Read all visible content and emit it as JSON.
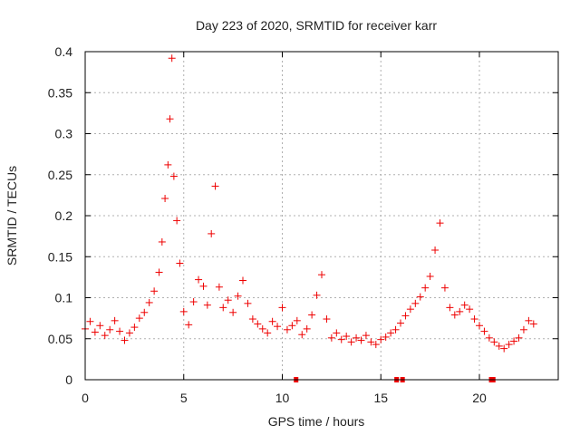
{
  "chart_data": {
    "type": "scatter",
    "title": "Day 223 of 2020, SRMTID for receiver karr",
    "xlabel": "GPS time / hours",
    "ylabel": "SRMTID / TECUs",
    "xlim": [
      0,
      24.0
    ],
    "ylim": [
      0,
      0.4
    ],
    "x_ticks": [
      0,
      5,
      10,
      15,
      20
    ],
    "x_tick_labels": [
      "0",
      "5",
      "10",
      "15",
      "20"
    ],
    "y_ticks": [
      0,
      0.05,
      0.1,
      0.15,
      0.2,
      0.25,
      0.3,
      0.35,
      0.4
    ],
    "y_tick_labels": [
      "0",
      "0.05",
      "0.1",
      "0.15",
      "0.2",
      "0.25",
      "0.3",
      "0.35",
      "0.4"
    ],
    "grid": true,
    "marker": "+",
    "color": "#ee0000",
    "series": [
      {
        "name": "SRMTID",
        "x": [
          0.0,
          0.25,
          0.5,
          0.75,
          1.0,
          1.25,
          1.5,
          1.75,
          2.0,
          2.25,
          2.5,
          2.75,
          3.0,
          3.25,
          3.5,
          3.75,
          3.9,
          4.05,
          4.2,
          4.3,
          4.4,
          4.5,
          4.65,
          4.8,
          5.0,
          5.25,
          5.5,
          5.75,
          6.0,
          6.2,
          6.4,
          6.6,
          6.8,
          7.0,
          7.25,
          7.5,
          7.75,
          8.0,
          8.25,
          8.5,
          8.75,
          9.0,
          9.25,
          9.5,
          9.75,
          10.0,
          10.25,
          10.5,
          10.75,
          11.0,
          11.25,
          11.5,
          11.75,
          12.0,
          12.25,
          12.5,
          12.75,
          13.0,
          13.25,
          13.5,
          13.75,
          14.0,
          14.25,
          14.5,
          14.75,
          15.0,
          15.25,
          15.5,
          15.75,
          16.0,
          16.25,
          16.5,
          16.75,
          17.0,
          17.25,
          17.5,
          17.75,
          18.0,
          18.25,
          18.5,
          18.75,
          19.0,
          19.25,
          19.5,
          19.75,
          20.0,
          20.25,
          20.5,
          20.75,
          21.0,
          21.25,
          21.5,
          21.75,
          22.0,
          22.25,
          22.5,
          22.75
        ],
        "y": [
          0.062,
          0.071,
          0.058,
          0.066,
          0.054,
          0.061,
          0.072,
          0.059,
          0.048,
          0.057,
          0.064,
          0.075,
          0.082,
          0.094,
          0.108,
          0.131,
          0.168,
          0.221,
          0.262,
          0.318,
          0.392,
          0.248,
          0.194,
          0.142,
          0.083,
          0.067,
          0.095,
          0.122,
          0.114,
          0.091,
          0.178,
          0.236,
          0.113,
          0.088,
          0.097,
          0.082,
          0.102,
          0.121,
          0.093,
          0.074,
          0.068,
          0.062,
          0.057,
          0.071,
          0.065,
          0.088,
          0.061,
          0.066,
          0.072,
          0.055,
          0.062,
          0.079,
          0.103,
          0.128,
          0.074,
          0.051,
          0.057,
          0.049,
          0.053,
          0.046,
          0.051,
          0.048,
          0.054,
          0.046,
          0.043,
          0.049,
          0.052,
          0.057,
          0.061,
          0.069,
          0.078,
          0.086,
          0.093,
          0.101,
          0.112,
          0.126,
          0.158,
          0.191,
          0.112,
          0.088,
          0.079,
          0.083,
          0.091,
          0.086,
          0.074,
          0.066,
          0.059,
          0.051,
          0.046,
          0.041,
          0.038,
          0.043,
          0.047,
          0.051,
          0.061,
          0.072,
          0.068
        ]
      }
    ],
    "data_gaps_x": [
      10.7,
      15.8,
      16.1,
      20.6,
      20.7
    ]
  }
}
